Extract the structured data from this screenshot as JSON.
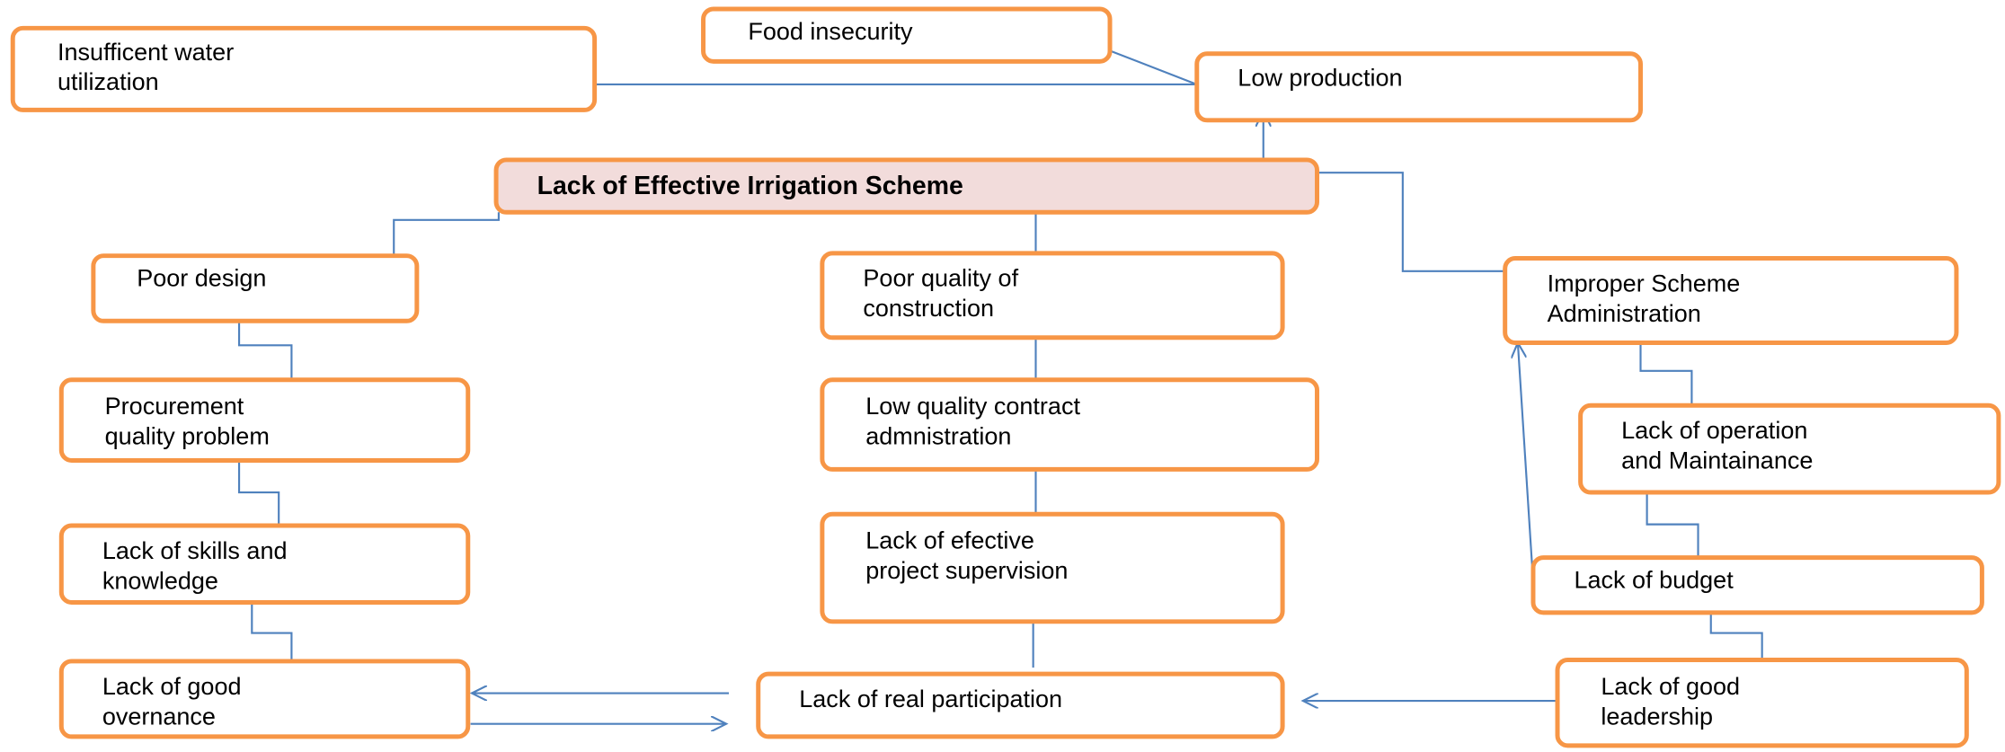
{
  "nodes": [
    {
      "lines": [
        "Food insecurity"
      ]
    },
    {
      "lines": [
        "Insufficent water",
        "utilization"
      ]
    },
    {
      "lines": [
        "Low production"
      ]
    },
    {
      "lines": [
        "Lack of Effective Irrigation Scheme"
      ]
    },
    {
      "lines": [
        "Poor design"
      ]
    },
    {
      "lines": [
        "Poor quality of",
        "construction"
      ]
    },
    {
      "lines": [
        "Improper Scheme",
        "Administration"
      ]
    },
    {
      "lines": [
        "Procurement",
        "quality problem"
      ]
    },
    {
      "lines": [
        "Low quality contract",
        "admnistration"
      ]
    },
    {
      "lines": [
        "Lack of operation",
        "and Maintainance"
      ]
    },
    {
      "lines": [
        "Lack of skills and",
        "knowledge"
      ]
    },
    {
      "lines": [
        "Lack of efective",
        "project supervision"
      ]
    },
    {
      "lines": [
        "Lack of budget"
      ]
    },
    {
      "lines": [
        "Lack of good",
        "overnance"
      ]
    },
    {
      "lines": [
        "Lack of real participation"
      ]
    },
    {
      "lines": [
        "Lack of good",
        "leadership"
      ]
    }
  ]
}
